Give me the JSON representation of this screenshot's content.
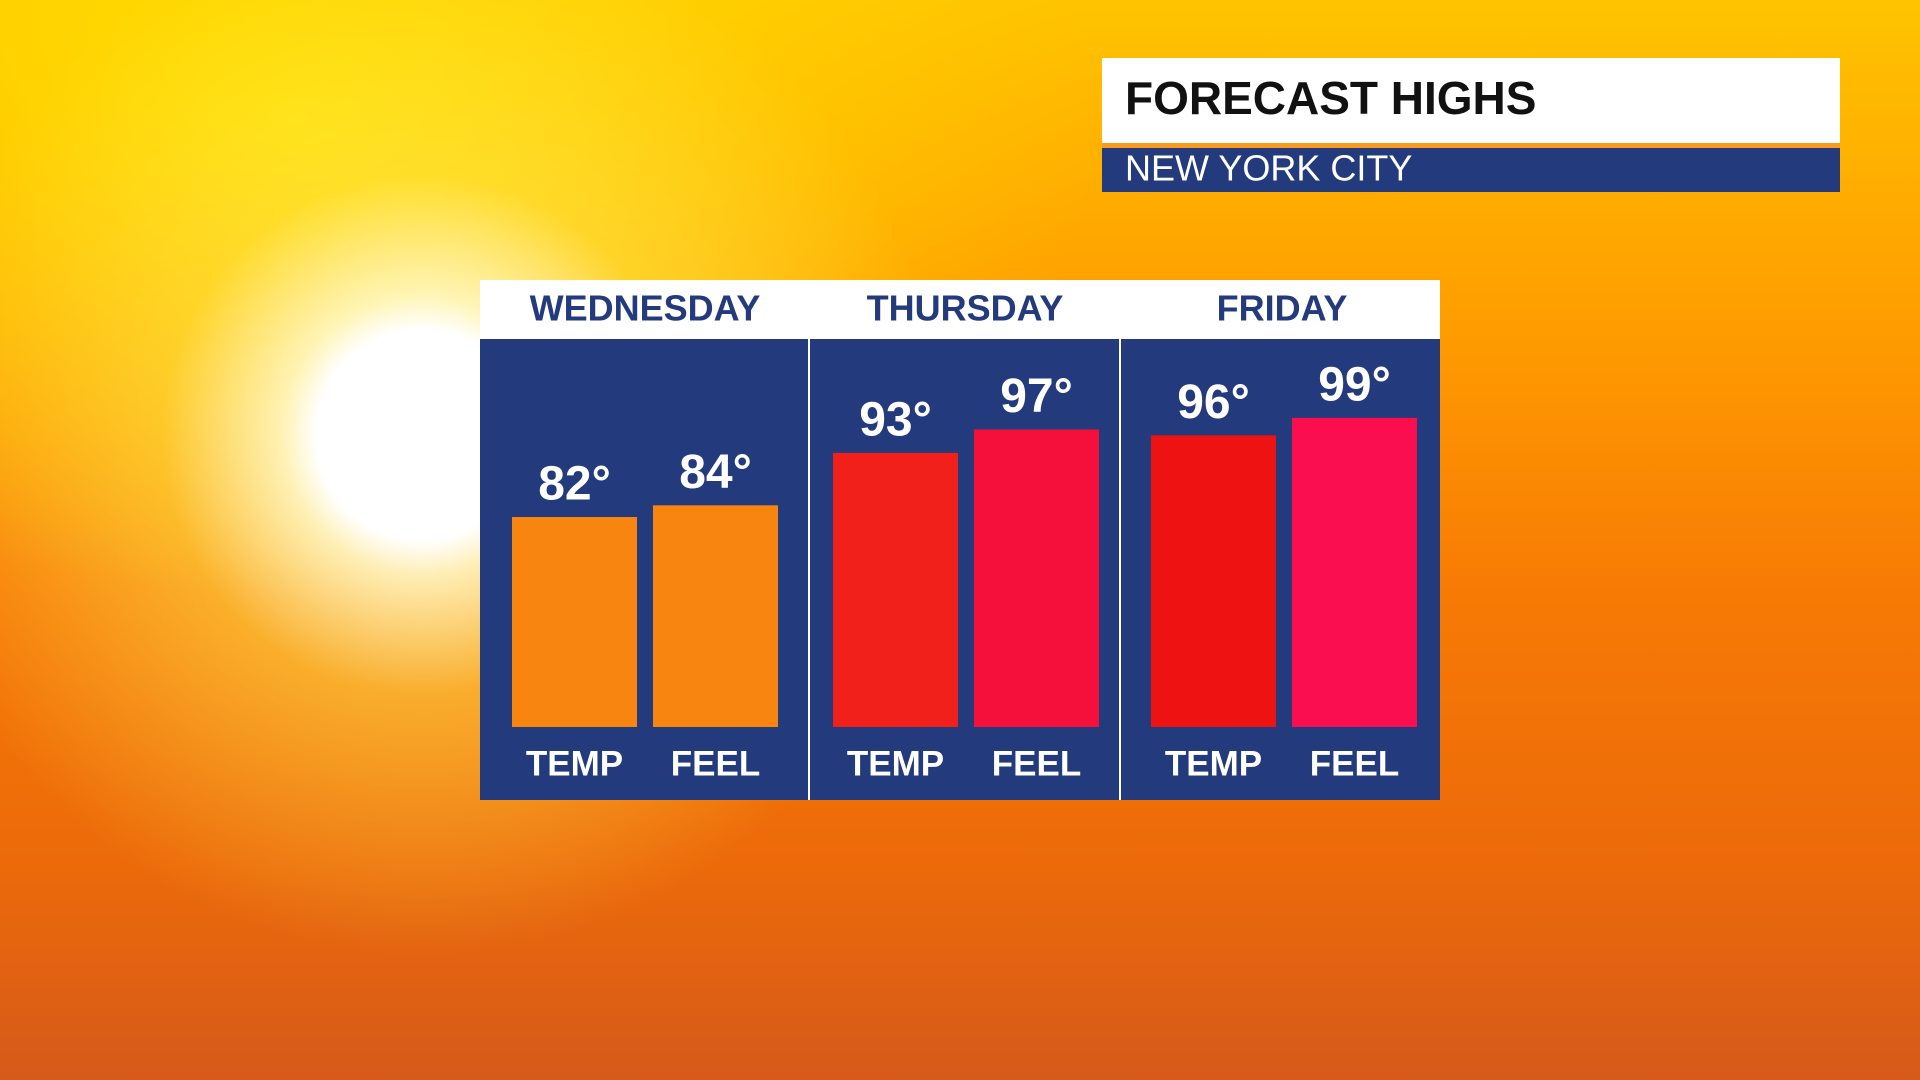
{
  "chart_data": {
    "type": "bar",
    "title": "FORECAST HIGHS",
    "subtitle": "NEW YORK CITY",
    "categories": [
      "WEDNESDAY",
      "THURSDAY",
      "FRIDAY"
    ],
    "series": [
      {
        "name": "TEMP",
        "values": [
          82,
          93,
          96
        ],
        "value_labels": [
          "82°",
          "93°",
          "96°"
        ],
        "colors": [
          "#f7850f",
          "#f2201a",
          "#ee1212"
        ]
      },
      {
        "name": "FEEL",
        "values": [
          84,
          97,
          99
        ],
        "value_labels": [
          "84°",
          "97°",
          "99°"
        ],
        "colors": [
          "#f7850f",
          "#f5103c",
          "#fb0e4f"
        ]
      }
    ],
    "ylim": [
      46,
      112
    ]
  }
}
